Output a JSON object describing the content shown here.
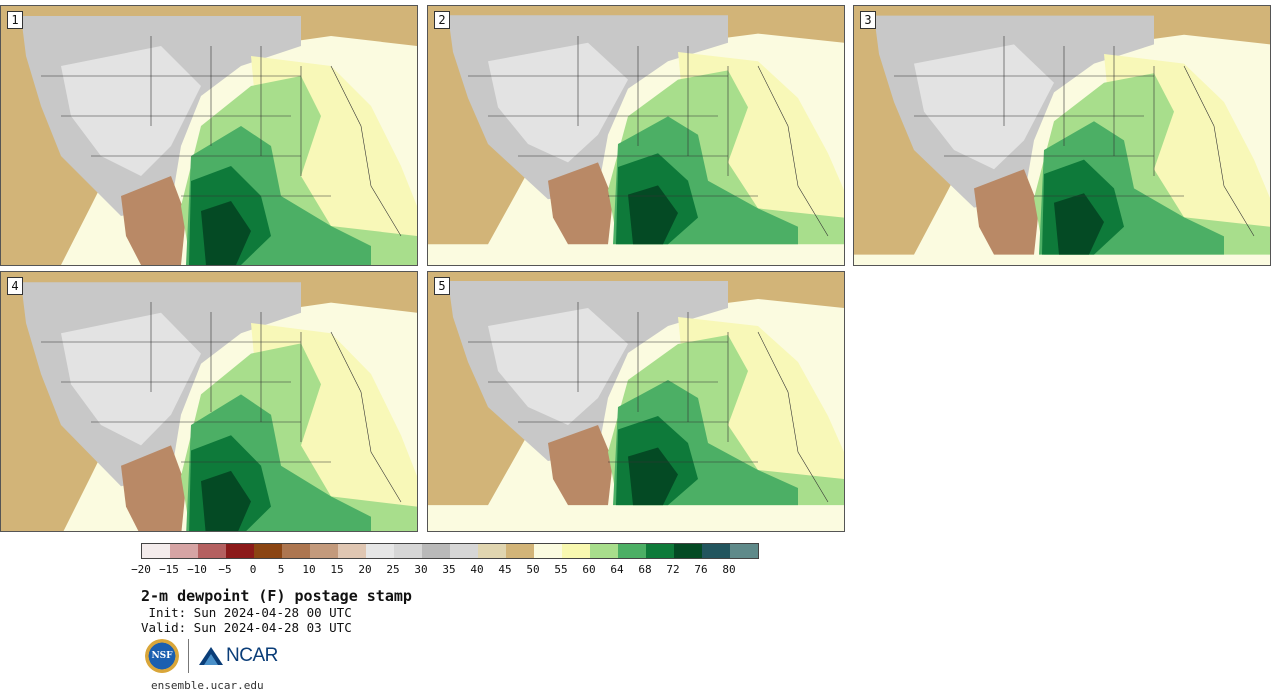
{
  "panels": [
    {
      "label": "1",
      "scale": 1.0
    },
    {
      "label": "2",
      "scale": 0.92
    },
    {
      "label": "3",
      "scale": 0.96
    },
    {
      "label": "4",
      "scale": 1.02
    },
    {
      "label": "5",
      "scale": 0.9
    }
  ],
  "colorbar": {
    "colors": [
      "#f4ecec",
      "#d6a4a4",
      "#b46060",
      "#8c1a1a",
      "#8b4513",
      "#ad7650",
      "#c39a7c",
      "#dfc6b2",
      "#e6e6e6",
      "#d6d6d6",
      "#b9b9b9",
      "#d6d6d6",
      "#e0d5b0",
      "#d2b478",
      "#fbfbe0",
      "#f8f8b0",
      "#a8de8c",
      "#4caf65",
      "#0e7a3a",
      "#044a24",
      "#22555e",
      "#5f8a8a"
    ],
    "tick_labels": [
      "−20",
      "−15",
      "−10",
      "−5",
      "0",
      "5",
      "10",
      "15",
      "20",
      "25",
      "30",
      "35",
      "40",
      "45",
      "50",
      "55",
      "60",
      "64",
      "68",
      "72",
      "76",
      "80"
    ]
  },
  "title": "2-m dewpoint (F) postage stamp",
  "init": " Init: Sun 2024-04-28 00 UTC",
  "valid": "Valid: Sun 2024-04-28 03 UTC",
  "logos": {
    "nsf": "NSF",
    "ncar": "NCAR"
  },
  "site": "ensemble.ucar.edu"
}
